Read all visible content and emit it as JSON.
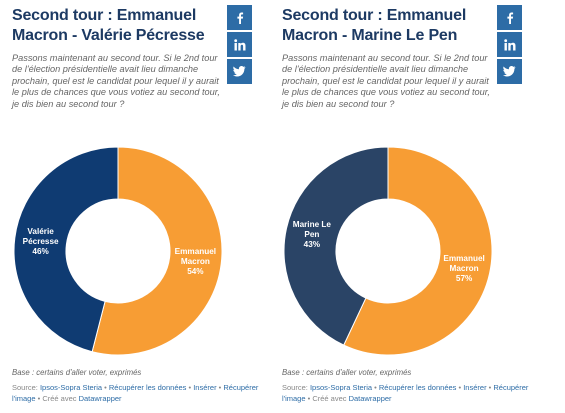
{
  "panels": [
    {
      "title": "Second tour : Emmanuel Macron - Valérie Pécresse",
      "description": "Passons maintenant au second tour. Si le 2nd tour de l'élection présidentielle avait lieu dimanche prochain, quel est le candidat pour lequel il y aurait le plus de chances que vous votiez au second tour, je dis bien au second tour ?",
      "base": "Base : certains d'aller voter, exprimés",
      "source": {
        "prefix": "Source: ",
        "source_link": "Ipsos-Sopra Steria",
        "sep": " • ",
        "data_link": "Récupérer les données",
        "insert_link": "Insérer",
        "image_link": "Récupérer l'image",
        "created_with": " • Créé avec ",
        "tool_link": "Datawrapper"
      },
      "chart_data": {
        "type": "pie",
        "donut": true,
        "categories": [
          "Emmanuel Macron",
          "Valérie Pécresse"
        ],
        "values": [
          54,
          46
        ],
        "label_lines": [
          [
            "Emmanuel",
            "Macron",
            "54%"
          ],
          [
            "Valérie",
            "Pécresse",
            "46%"
          ]
        ],
        "colors": [
          "#f79d34",
          "#0f3b72"
        ]
      }
    },
    {
      "title": "Second tour : Emmanuel Macron - Marine Le Pen",
      "description": "Passons maintenant au second tour. Si le 2nd tour de l'élection présidentielle avait lieu dimanche prochain, quel est le candidat pour lequel il y aurait le plus de chances que vous votiez au second tour, je dis bien au second tour ?",
      "base": "Base : certains d'aller voter, exprimés",
      "source": {
        "prefix": "Source: ",
        "source_link": "Ipsos-Sopra Steria",
        "sep": " • ",
        "data_link": "Récupérer les données",
        "insert_link": "Insérer",
        "image_link": "Récupérer l'image",
        "created_with": " • Créé avec ",
        "tool_link": "Datawrapper"
      },
      "chart_data": {
        "type": "pie",
        "donut": true,
        "categories": [
          "Emmanuel Macron",
          "Marine Le Pen"
        ],
        "values": [
          57,
          43
        ],
        "label_lines": [
          [
            "Emmanuel",
            "Macron",
            "57%"
          ],
          [
            "Marine Le",
            "Pen",
            "43%"
          ]
        ],
        "colors": [
          "#f79d34",
          "#2a4466"
        ]
      }
    }
  ],
  "social": {
    "color": "#2d6ca6",
    "icons": [
      "facebook-icon",
      "linkedin-icon",
      "twitter-icon"
    ]
  }
}
